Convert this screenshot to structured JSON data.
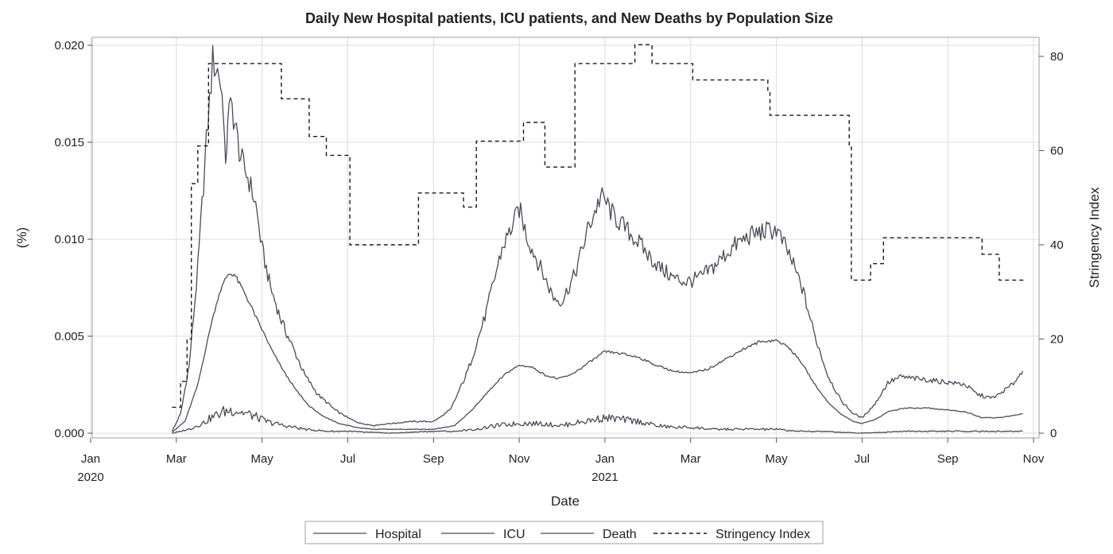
{
  "chart_data": {
    "type": "line",
    "title": "Daily New Hospital patients, ICU patients, and New Deaths by Population Size",
    "xlabel": "Date",
    "ylabel": "(%)",
    "y2label": "Stringency Index",
    "ylim": [
      0,
      0.02
    ],
    "y2lim": [
      0,
      83
    ],
    "yticks": [
      "0.000",
      "0.005",
      "0.010",
      "0.015",
      "0.020"
    ],
    "y2ticks": [
      "0",
      "20",
      "40",
      "60",
      "80"
    ],
    "xlim_months": [
      0,
      22
    ],
    "xticks": [
      {
        "m": 0,
        "label": "Jan",
        "sub": "2020"
      },
      {
        "m": 2,
        "label": "Mar",
        "sub": ""
      },
      {
        "m": 4,
        "label": "May",
        "sub": ""
      },
      {
        "m": 6,
        "label": "Jul",
        "sub": ""
      },
      {
        "m": 8,
        "label": "Sep",
        "sub": ""
      },
      {
        "m": 10,
        "label": "Nov",
        "sub": ""
      },
      {
        "m": 12,
        "label": "Jan",
        "sub": "2021"
      },
      {
        "m": 14,
        "label": "Mar",
        "sub": ""
      },
      {
        "m": 16,
        "label": "May",
        "sub": ""
      },
      {
        "m": 18,
        "label": "Jul",
        "sub": ""
      },
      {
        "m": 20,
        "label": "Sep",
        "sub": ""
      },
      {
        "m": 22,
        "label": "Nov",
        "sub": ""
      }
    ],
    "legend": [
      "Hospital",
      "ICU",
      "Death",
      "Stringency Index"
    ],
    "legend_position": "bottom",
    "grid": true,
    "series": [
      {
        "name": "Hospital",
        "axis": "left",
        "style": "solid",
        "points": [
          [
            1.9,
            0.0001
          ],
          [
            2.1,
            0.001
          ],
          [
            2.3,
            0.0035
          ],
          [
            2.5,
            0.0085
          ],
          [
            2.7,
            0.015
          ],
          [
            2.85,
            0.0192
          ],
          [
            3.0,
            0.0185
          ],
          [
            3.1,
            0.0168
          ],
          [
            3.15,
            0.0133
          ],
          [
            3.2,
            0.0165
          ],
          [
            3.3,
            0.0168
          ],
          [
            3.5,
            0.0142
          ],
          [
            3.7,
            0.013
          ],
          [
            3.85,
            0.0118
          ],
          [
            4.0,
            0.0095
          ],
          [
            4.2,
            0.0075
          ],
          [
            4.45,
            0.0058
          ],
          [
            4.7,
            0.0045
          ],
          [
            5.0,
            0.003
          ],
          [
            5.3,
            0.002
          ],
          [
            5.7,
            0.0012
          ],
          [
            6.0,
            0.0008
          ],
          [
            6.3,
            0.0005
          ],
          [
            6.6,
            0.0004
          ],
          [
            7.0,
            0.0005
          ],
          [
            7.5,
            0.0006
          ],
          [
            8.0,
            0.0006
          ],
          [
            8.4,
            0.0012
          ],
          [
            8.8,
            0.0032
          ],
          [
            9.2,
            0.006
          ],
          [
            9.6,
            0.0095
          ],
          [
            9.9,
            0.011
          ],
          [
            10.0,
            0.0116
          ],
          [
            10.2,
            0.01
          ],
          [
            10.5,
            0.0085
          ],
          [
            10.8,
            0.007
          ],
          [
            11.0,
            0.0068
          ],
          [
            11.3,
            0.0082
          ],
          [
            11.6,
            0.0105
          ],
          [
            11.9,
            0.0122
          ],
          [
            12.0,
            0.012
          ],
          [
            12.2,
            0.0112
          ],
          [
            12.5,
            0.0105
          ],
          [
            12.8,
            0.0098
          ],
          [
            13.0,
            0.0092
          ],
          [
            13.3,
            0.0085
          ],
          [
            13.6,
            0.008
          ],
          [
            13.9,
            0.0078
          ],
          [
            14.2,
            0.008
          ],
          [
            14.5,
            0.0085
          ],
          [
            14.8,
            0.0092
          ],
          [
            15.1,
            0.0098
          ],
          [
            15.4,
            0.0102
          ],
          [
            15.7,
            0.0104
          ],
          [
            16.0,
            0.0105
          ],
          [
            16.3,
            0.0092
          ],
          [
            16.6,
            0.0075
          ],
          [
            16.9,
            0.005
          ],
          [
            17.2,
            0.003
          ],
          [
            17.5,
            0.0017
          ],
          [
            17.8,
            0.001
          ],
          [
            18.0,
            0.0008
          ],
          [
            18.3,
            0.0015
          ],
          [
            18.6,
            0.0026
          ],
          [
            18.9,
            0.0029
          ],
          [
            19.3,
            0.0028
          ],
          [
            19.7,
            0.0027
          ],
          [
            20.1,
            0.0026
          ],
          [
            20.4,
            0.0025
          ],
          [
            20.7,
            0.002
          ],
          [
            21.0,
            0.0018
          ],
          [
            21.2,
            0.002
          ],
          [
            21.5,
            0.0025
          ],
          [
            21.75,
            0.0032
          ]
        ]
      },
      {
        "name": "ICU",
        "axis": "left",
        "style": "solid",
        "points": [
          [
            1.9,
            5e-05
          ],
          [
            2.2,
            0.0006
          ],
          [
            2.5,
            0.0025
          ],
          [
            2.8,
            0.0055
          ],
          [
            3.0,
            0.0072
          ],
          [
            3.2,
            0.0082
          ],
          [
            3.35,
            0.0082
          ],
          [
            3.6,
            0.0072
          ],
          [
            3.9,
            0.0058
          ],
          [
            4.2,
            0.0044
          ],
          [
            4.5,
            0.0032
          ],
          [
            4.8,
            0.0022
          ],
          [
            5.1,
            0.0014
          ],
          [
            5.4,
            0.0009
          ],
          [
            5.8,
            0.0005
          ],
          [
            6.2,
            0.0003
          ],
          [
            6.6,
            0.0002
          ],
          [
            7.2,
            0.0002
          ],
          [
            8.0,
            0.0002
          ],
          [
            8.5,
            0.0004
          ],
          [
            8.9,
            0.0012
          ],
          [
            9.3,
            0.0022
          ],
          [
            9.7,
            0.0031
          ],
          [
            10.0,
            0.0035
          ],
          [
            10.3,
            0.0034
          ],
          [
            10.6,
            0.003
          ],
          [
            10.9,
            0.0028
          ],
          [
            11.2,
            0.003
          ],
          [
            11.6,
            0.0036
          ],
          [
            12.0,
            0.0042
          ],
          [
            12.4,
            0.0041
          ],
          [
            12.8,
            0.0039
          ],
          [
            13.2,
            0.0035
          ],
          [
            13.6,
            0.0032
          ],
          [
            14.0,
            0.0031
          ],
          [
            14.4,
            0.0033
          ],
          [
            14.8,
            0.0038
          ],
          [
            15.2,
            0.0043
          ],
          [
            15.6,
            0.0047
          ],
          [
            16.0,
            0.0048
          ],
          [
            16.3,
            0.0044
          ],
          [
            16.6,
            0.0036
          ],
          [
            16.9,
            0.0025
          ],
          [
            17.2,
            0.0016
          ],
          [
            17.5,
            0.001
          ],
          [
            17.8,
            0.0006
          ],
          [
            18.0,
            0.0005
          ],
          [
            18.3,
            0.0007
          ],
          [
            18.6,
            0.0011
          ],
          [
            19.0,
            0.0013
          ],
          [
            19.5,
            0.0013
          ],
          [
            20.0,
            0.0012
          ],
          [
            20.4,
            0.0011
          ],
          [
            20.8,
            0.0008
          ],
          [
            21.2,
            0.0008
          ],
          [
            21.5,
            0.0009
          ],
          [
            21.75,
            0.001
          ]
        ]
      },
      {
        "name": "Death",
        "axis": "left",
        "style": "solid",
        "points": [
          [
            1.9,
            0.0
          ],
          [
            2.3,
            0.0002
          ],
          [
            2.6,
            0.0005
          ],
          [
            2.9,
            0.0009
          ],
          [
            3.1,
            0.0011
          ],
          [
            3.3,
            0.0012
          ],
          [
            3.5,
            0.0011
          ],
          [
            3.8,
            0.0009
          ],
          [
            4.1,
            0.0006
          ],
          [
            4.5,
            0.0004
          ],
          [
            5.0,
            0.0002
          ],
          [
            5.5,
            0.0001
          ],
          [
            6.0,
            0.0001
          ],
          [
            7.0,
            0.0
          ],
          [
            8.0,
            0.0001
          ],
          [
            8.5,
            0.0001
          ],
          [
            9.0,
            0.0002
          ],
          [
            9.5,
            0.0004
          ],
          [
            10.0,
            0.0005
          ],
          [
            10.5,
            0.0005
          ],
          [
            11.0,
            0.0004
          ],
          [
            11.5,
            0.0006
          ],
          [
            12.0,
            0.0008
          ],
          [
            12.4,
            0.0007
          ],
          [
            12.8,
            0.0006
          ],
          [
            13.2,
            0.0004
          ],
          [
            13.6,
            0.0003
          ],
          [
            14.0,
            0.0003
          ],
          [
            14.5,
            0.0002
          ],
          [
            15.0,
            0.0002
          ],
          [
            15.5,
            0.0002
          ],
          [
            16.0,
            0.0002
          ],
          [
            16.5,
            0.0001
          ],
          [
            17.0,
            0.0001
          ],
          [
            18.0,
            0.0
          ],
          [
            19.0,
            0.0001
          ],
          [
            20.0,
            0.0001
          ],
          [
            21.0,
            0.0001
          ],
          [
            21.75,
            0.0001
          ]
        ]
      },
      {
        "name": "Stringency Index",
        "axis": "right",
        "style": "dashed-step",
        "points": [
          [
            1.9,
            5.5
          ],
          [
            2.1,
            11
          ],
          [
            2.25,
            20
          ],
          [
            2.35,
            53
          ],
          [
            2.5,
            61
          ],
          [
            2.75,
            78.5
          ],
          [
            4.45,
            71
          ],
          [
            5.1,
            63
          ],
          [
            5.5,
            59
          ],
          [
            6.05,
            40
          ],
          [
            7.65,
            51
          ],
          [
            8.7,
            48
          ],
          [
            9.0,
            62
          ],
          [
            10.1,
            66
          ],
          [
            10.6,
            56.5
          ],
          [
            11.3,
            78.5
          ],
          [
            12.7,
            82.5
          ],
          [
            13.1,
            78.5
          ],
          [
            14.05,
            75
          ],
          [
            15.8,
            72.5
          ],
          [
            15.85,
            67.5
          ],
          [
            17.7,
            61
          ],
          [
            17.75,
            32.5
          ],
          [
            18.2,
            36
          ],
          [
            18.5,
            41.5
          ],
          [
            20.8,
            38
          ],
          [
            21.2,
            32.5
          ],
          [
            21.8,
            32.5
          ]
        ]
      }
    ]
  }
}
